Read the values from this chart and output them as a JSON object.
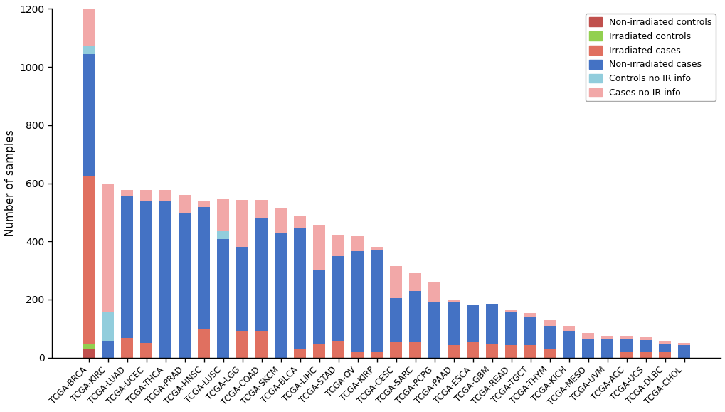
{
  "categories": [
    "TCGA-BRCA",
    "TCGA-KIRC",
    "TCGA-LUAD",
    "TCGA-UCEC",
    "TCGA-THCA",
    "TCGA-PRAD",
    "TCGA-HNSC",
    "TCGA-LUSC",
    "TCGA-LGG",
    "TCGA-COAD",
    "TCGA-SKCM",
    "TCGA-BLCA",
    "TCGA-LIHC",
    "TCGA-STAD",
    "TCGA-OV",
    "TCGA-KIRP",
    "TCGA-CESC",
    "TCGA-SARC",
    "TCGA-PCPG",
    "TCGA-PAAD",
    "TCGA-ESCA",
    "TCGA-GBM",
    "TCGA-READ",
    "TCGA-TGCT",
    "TCGA-THYM",
    "TCGA-KICH",
    "TCGA-MESO",
    "TCGA-UVM",
    "TCGA-ACC",
    "TCGA-UCS",
    "TCGA-DLBC",
    "TCGA-CHOL"
  ],
  "non_irradiated_controls": [
    28,
    0,
    0,
    0,
    0,
    0,
    0,
    0,
    0,
    0,
    0,
    0,
    0,
    0,
    0,
    0,
    0,
    0,
    0,
    0,
    0,
    0,
    0,
    0,
    0,
    0,
    0,
    0,
    0,
    0,
    0,
    0
  ],
  "irradiated_controls": [
    18,
    0,
    0,
    0,
    0,
    0,
    0,
    0,
    0,
    0,
    0,
    0,
    0,
    0,
    0,
    0,
    0,
    0,
    0,
    0,
    0,
    0,
    0,
    0,
    0,
    0,
    0,
    0,
    0,
    0,
    0,
    0
  ],
  "irradiated_cases": [
    580,
    0,
    68,
    50,
    0,
    0,
    100,
    0,
    92,
    92,
    0,
    28,
    48,
    58,
    18,
    18,
    52,
    52,
    0,
    43,
    53,
    48,
    43,
    43,
    28,
    0,
    0,
    0,
    18,
    18,
    18,
    0
  ],
  "non_irradiated_cases": [
    418,
    58,
    488,
    488,
    538,
    498,
    418,
    408,
    288,
    388,
    428,
    418,
    252,
    292,
    348,
    352,
    152,
    178,
    192,
    148,
    128,
    138,
    112,
    98,
    82,
    92,
    62,
    62,
    48,
    43,
    28,
    43
  ],
  "controls_no_ir_info": [
    28,
    98,
    0,
    0,
    0,
    0,
    0,
    28,
    0,
    0,
    0,
    0,
    0,
    0,
    0,
    0,
    0,
    0,
    0,
    0,
    0,
    0,
    0,
    0,
    0,
    0,
    0,
    0,
    0,
    0,
    0,
    0
  ],
  "cases_no_ir_info": [
    128,
    444,
    22,
    38,
    38,
    62,
    22,
    112,
    162,
    62,
    88,
    42,
    158,
    72,
    52,
    12,
    112,
    62,
    68,
    8,
    0,
    0,
    8,
    12,
    18,
    18,
    22,
    12,
    8,
    8,
    12,
    8
  ],
  "color_nic": "#c0504d",
  "color_ic": "#92d050",
  "color_irc": "#e07060",
  "color_nirc": "#4472c4",
  "color_cnir": "#92cddc",
  "color_casenir": "#f2a8a8",
  "legend_labels": [
    "Non-irradiated controls",
    "Irradiated controls",
    "Irradiated cases",
    "Non-irradiated cases",
    "Controls no IR info",
    "Cases no IR info"
  ],
  "ylabel": "Number of samples",
  "ylim": [
    0,
    1200
  ],
  "yticks": [
    0,
    200,
    400,
    600,
    800,
    1000,
    1200
  ],
  "bar_width": 0.65,
  "figsize": [
    10.2,
    5.79
  ],
  "dpi": 100
}
